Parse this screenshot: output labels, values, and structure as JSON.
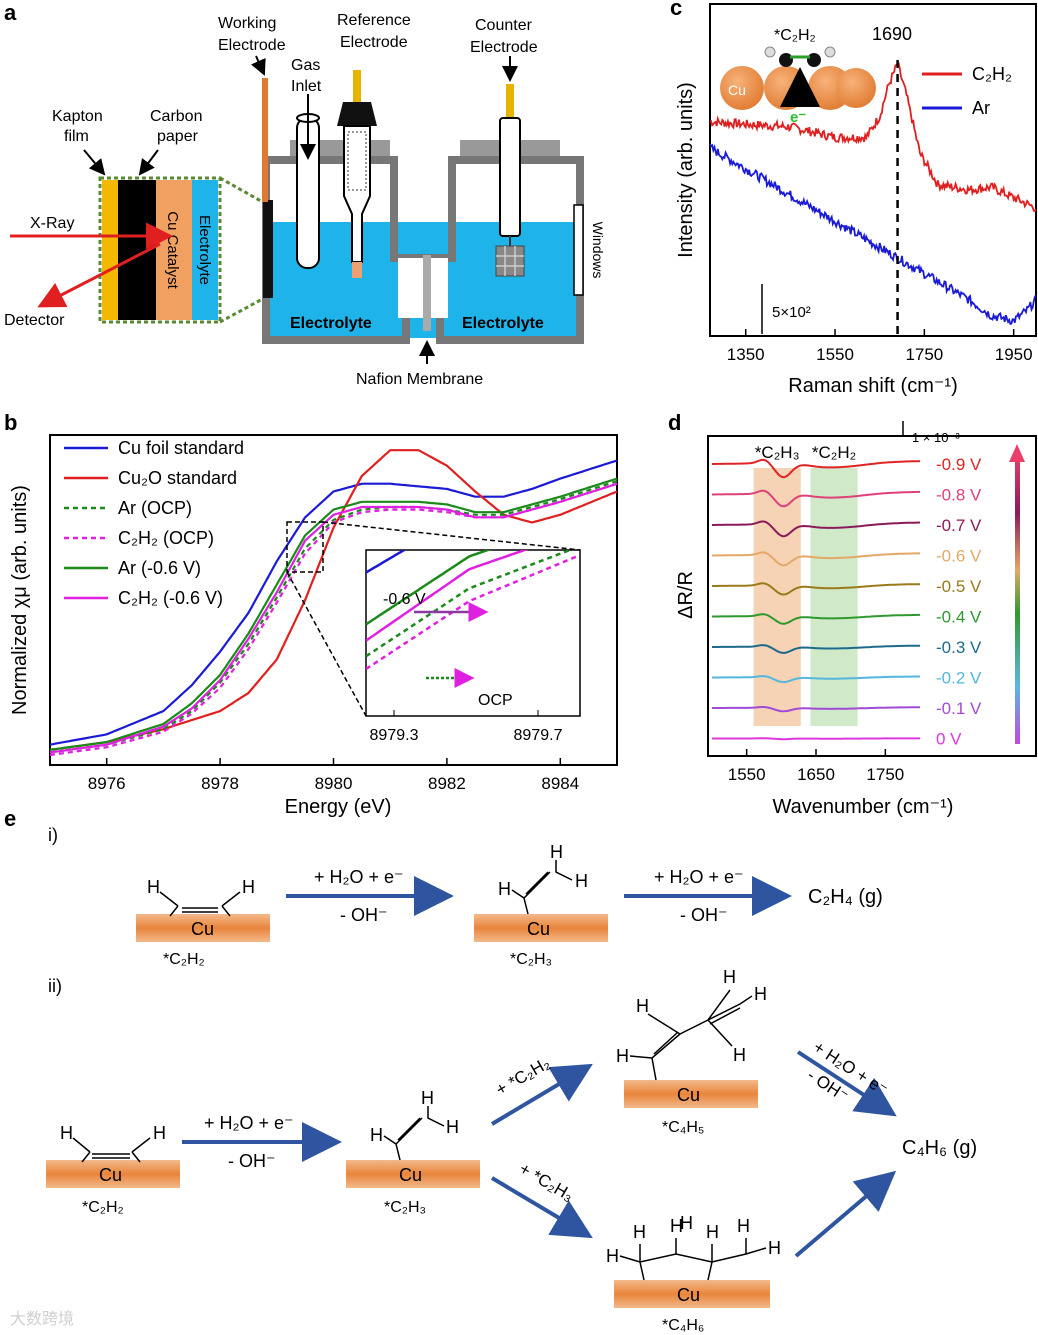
{
  "panels": {
    "a": "a",
    "b": "b",
    "c": "c",
    "d": "d",
    "e": "e"
  },
  "panel_a": {
    "working_electrode": [
      "Working",
      "Electrode"
    ],
    "gas_inlet": [
      "Gas",
      "Inlet"
    ],
    "reference_electrode": [
      "Reference",
      "Electrode"
    ],
    "counter_electrode": [
      "Counter",
      "Electrode"
    ],
    "kapton": [
      "Kapton",
      "film"
    ],
    "carbon_paper": [
      "Carbon",
      "paper"
    ],
    "xray": "X-Ray",
    "detector": "Detector",
    "cu_catalyst": "Cu Catalyst",
    "electrolyte_layer": "Electrolyte",
    "electrolyte_left": "Electrolyte",
    "electrolyte_right": "Electrolyte",
    "windows": "Windows",
    "nafion": "Nafion Membrane"
  },
  "chart_data": [
    {
      "id": "b",
      "type": "line",
      "xlabel": "Energy (eV)",
      "ylabel": "Normalized χμ (arb. units)",
      "xlim": [
        8975,
        8985
      ],
      "ylim": [
        0,
        1.2
      ],
      "xticks": [
        "8976",
        "8978",
        "8980",
        "8982",
        "8984"
      ],
      "series": [
        {
          "name": "Cu foil standard",
          "legend": "Cu foil standard",
          "color": "#1b1bd6",
          "dash": false,
          "x": [
            8975,
            8976,
            8977,
            8977.5,
            8978,
            8978.5,
            8979,
            8979.5,
            8980,
            8980.5,
            8981,
            8981.5,
            8982,
            8982.5,
            8983,
            8983.5,
            8984,
            8985
          ],
          "y": [
            0.04,
            0.08,
            0.17,
            0.27,
            0.4,
            0.55,
            0.75,
            0.92,
            1.02,
            1.05,
            1.05,
            1.04,
            1.03,
            1.0,
            1.0,
            1.03,
            1.07,
            1.14
          ]
        },
        {
          "name": "Cu2O standard",
          "legend": "Cu₂O standard",
          "color": "#e02020",
          "dash": false,
          "x": [
            8975,
            8976,
            8977,
            8978,
            8978.5,
            8979,
            8979.5,
            8980,
            8980.5,
            8981,
            8981.5,
            8982,
            8982.5,
            8983,
            8983.5,
            8984,
            8985
          ],
          "y": [
            0.02,
            0.05,
            0.1,
            0.17,
            0.24,
            0.37,
            0.6,
            0.88,
            1.08,
            1.18,
            1.18,
            1.12,
            1.02,
            0.93,
            0.9,
            0.93,
            1.02
          ]
        },
        {
          "name": "Ar (OCP)",
          "legend": "Ar (OCP)",
          "color": "#1b8a1b",
          "dash": true,
          "x": [
            8975,
            8976,
            8977,
            8977.5,
            8978,
            8978.5,
            8979,
            8979.5,
            8980,
            8980.5,
            8981,
            8981.5,
            8982,
            8982.5,
            8983,
            8983.5,
            8984,
            8985
          ],
          "y": [
            0.01,
            0.04,
            0.1,
            0.17,
            0.28,
            0.43,
            0.61,
            0.8,
            0.91,
            0.95,
            0.96,
            0.96,
            0.95,
            0.93,
            0.93,
            0.96,
            0.99,
            1.06
          ]
        },
        {
          "name": "C2H2 (OCP)",
          "legend": "C₂H₂ (OCP)",
          "color": "#e020e0",
          "dash": true,
          "x": [
            8975,
            8976,
            8977,
            8977.5,
            8978,
            8978.5,
            8979,
            8979.5,
            8980,
            8980.5,
            8981,
            8981.5,
            8982,
            8982.5,
            8983,
            8983.5,
            8984,
            8985
          ],
          "y": [
            0.0,
            0.03,
            0.09,
            0.16,
            0.26,
            0.41,
            0.59,
            0.78,
            0.9,
            0.94,
            0.95,
            0.95,
            0.94,
            0.92,
            0.92,
            0.95,
            0.98,
            1.05
          ]
        },
        {
          "name": "Ar (-0.6 V)",
          "legend": "Ar (-0.6 V)",
          "color": "#1b8a1b",
          "dash": false,
          "x": [
            8975,
            8976,
            8977,
            8977.5,
            8978,
            8978.5,
            8979,
            8979.5,
            8980,
            8980.5,
            8981,
            8981.5,
            8982,
            8982.5,
            8983,
            8983.5,
            8984,
            8985
          ],
          "y": [
            0.02,
            0.05,
            0.12,
            0.2,
            0.31,
            0.47,
            0.66,
            0.85,
            0.95,
            0.98,
            0.98,
            0.98,
            0.97,
            0.94,
            0.94,
            0.97,
            1.0,
            1.07
          ]
        },
        {
          "name": "C2H2 (-0.6 V)",
          "legend": "C₂H₂ (-0.6 V)",
          "color": "#e020e0",
          "dash": false,
          "x": [
            8975,
            8976,
            8977,
            8977.5,
            8978,
            8978.5,
            8979,
            8979.5,
            8980,
            8980.5,
            8981,
            8981.5,
            8982,
            8982.5,
            8983,
            8983.5,
            8984,
            8985
          ],
          "y": [
            0.01,
            0.04,
            0.11,
            0.18,
            0.29,
            0.45,
            0.63,
            0.83,
            0.93,
            0.96,
            0.96,
            0.96,
            0.95,
            0.92,
            0.92,
            0.95,
            0.98,
            1.05
          ]
        }
      ],
      "inset": {
        "xticks": [
          "8979.3",
          "8979.7"
        ],
        "label_v": "-0.6 V",
        "label_ocp": "OCP"
      }
    },
    {
      "id": "c",
      "type": "line",
      "xlabel": "Raman shift (cm⁻¹)",
      "ylabel": "Intensity (arb. units)",
      "xlim": [
        1270,
        2000
      ],
      "xticks": [
        "1350",
        "1550",
        "1750",
        "1950"
      ],
      "peak_label": "1690",
      "peak_x": 1690,
      "scale_label": "5×10²",
      "series": [
        {
          "name": "C2H2",
          "legend": "C₂H₂",
          "color": "#e02020",
          "x": [
            1270,
            1350,
            1450,
            1550,
            1620,
            1650,
            1670,
            1690,
            1710,
            1740,
            1780,
            1850,
            1900,
            1950,
            2000
          ],
          "y": [
            0.78,
            0.77,
            0.76,
            0.72,
            0.72,
            0.8,
            0.92,
            1.0,
            0.88,
            0.66,
            0.54,
            0.52,
            0.53,
            0.49,
            0.45
          ]
        },
        {
          "name": "Ar",
          "legend": "Ar",
          "color": "#1b1bd6",
          "x": [
            1270,
            1350,
            1450,
            1550,
            1650,
            1750,
            1850,
            1900,
            1950,
            1980,
            2000
          ],
          "y": [
            0.68,
            0.6,
            0.5,
            0.4,
            0.3,
            0.2,
            0.1,
            0.04,
            0.02,
            0.06,
            0.1
          ]
        }
      ],
      "inset_labels": {
        "molecule": "*C₂H₂",
        "cu": "Cu",
        "electron": "e⁻"
      }
    },
    {
      "id": "d",
      "type": "line",
      "xlabel": "Wavenumber (cm⁻¹)",
      "ylabel": "ΔR/R",
      "xlim": [
        1500,
        1800
      ],
      "xticks": [
        "1550",
        "1650",
        "1750"
      ],
      "scale_label": "1 × 10⁻³",
      "bands": [
        {
          "label": "*C₂H₃",
          "from": 1560,
          "to": 1628,
          "color": "#f5cba7"
        },
        {
          "label": "*C₂H₂",
          "from": 1642,
          "to": 1710,
          "color": "#c8e6c0"
        }
      ],
      "series": [
        {
          "name": "-0.9 V",
          "color": "#e02424",
          "depth": 1.0
        },
        {
          "name": "-0.8 V",
          "color": "#e0407a",
          "depth": 0.9
        },
        {
          "name": "-0.7 V",
          "color": "#8b1a5a",
          "depth": 0.85
        },
        {
          "name": "-0.6 V",
          "color": "#e3a868",
          "depth": 0.75
        },
        {
          "name": "-0.5 V",
          "color": "#9a7a1a",
          "depth": 0.65
        },
        {
          "name": "-0.4 V",
          "color": "#2e9a2e",
          "depth": 0.55
        },
        {
          "name": "-0.3 V",
          "color": "#1e6a8a",
          "depth": 0.45
        },
        {
          "name": "-0.2 V",
          "color": "#55b6dd",
          "depth": 0.35
        },
        {
          "name": "-0.1 V",
          "color": "#a24ad8",
          "depth": 0.25
        },
        {
          "name": "0 V",
          "color": "#dd38dd",
          "depth": 0.05
        }
      ]
    }
  ],
  "panel_e": {
    "i": "i)",
    "ii": "ii)",
    "cu": "Cu",
    "h": "H",
    "step_h2o": "+ H₂O + e⁻",
    "step_oh": "- OH⁻",
    "c2h2": "*C₂H₂",
    "c2h3": "*C₂H₃",
    "c4h5": "*C₄H₅",
    "c4h6": "*C₄H₆",
    "c2h4_product": "C₂H₄ (g)",
    "c4h6_product": "C₄H₆ (g)",
    "plus_c2h2": "+ *C₂H₂",
    "plus_c2h3": "+ *C₂H₃"
  },
  "watermark": "大数跨境"
}
